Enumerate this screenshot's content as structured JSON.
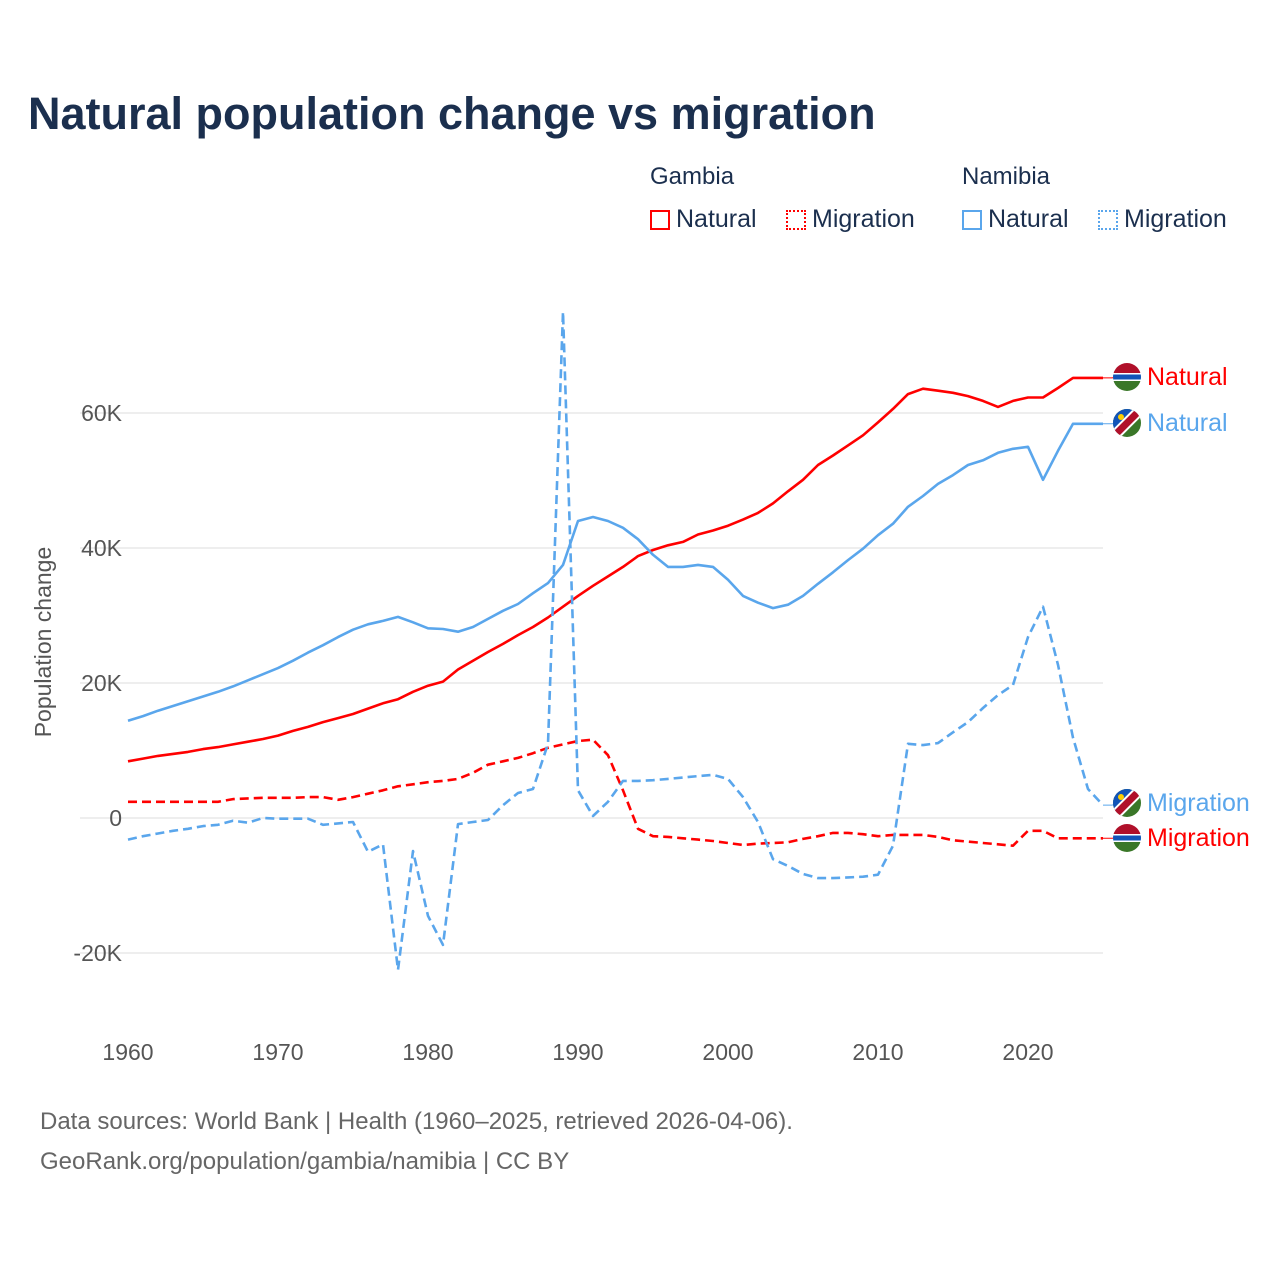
{
  "chart_data": {
    "type": "line",
    "title": "Natural population change vs migration",
    "xlabel": "",
    "ylabel": "Population change",
    "xlim": [
      1960,
      2025
    ],
    "ylim": [
      -30000,
      75000
    ],
    "grid": true,
    "legend_placement": "top-right",
    "x_ticks": [
      "1960",
      "1970",
      "1980",
      "1990",
      "2000",
      "2010",
      "2020"
    ],
    "y_ticks": [
      {
        "v": -20000,
        "label": "-20K"
      },
      {
        "v": 0,
        "label": "0"
      },
      {
        "v": 20000,
        "label": "20K"
      },
      {
        "v": 40000,
        "label": "40K"
      },
      {
        "v": 60000,
        "label": "60K"
      }
    ],
    "legend_groups": [
      {
        "name": "Gambia",
        "items": [
          "Natural",
          "Migration"
        ]
      },
      {
        "name": "Namibia",
        "items": [
          "Natural",
          "Migration"
        ]
      }
    ],
    "x_start": 1960,
    "series": [
      {
        "name": "Gambia Natural",
        "country": "Gambia",
        "end_label": "Natural",
        "color": "#ff0000",
        "dash": false,
        "flag": "gambia",
        "values": [
          8.4,
          8.8,
          9.2,
          9.5,
          9.8,
          10.2,
          10.5,
          10.9,
          11.3,
          11.7,
          12.2,
          12.9,
          13.5,
          14.2,
          14.8,
          15.4,
          16.2,
          17.0,
          17.6,
          18.7,
          19.6,
          20.2,
          22.0,
          23.3,
          24.6,
          25.8,
          27.1,
          28.3,
          29.7,
          31.3,
          32.9,
          34.4,
          35.8,
          37.2,
          38.8,
          39.7,
          40.4,
          40.9,
          42.0,
          42.6,
          43.3,
          44.2,
          45.2,
          46.6,
          48.4,
          50.1,
          52.3,
          53.7,
          55.2,
          56.7,
          58.6,
          60.6,
          62.8,
          63.6,
          63.3,
          63.0,
          62.5,
          61.8,
          60.9,
          61.8,
          62.3,
          62.3,
          63.7,
          65.2,
          65.2,
          65.2
        ]
      },
      {
        "name": "Gambia Migration",
        "country": "Gambia",
        "end_label": "Migration",
        "color": "#ff0000",
        "dash": true,
        "flag": "gambia",
        "values": [
          2.4,
          2.4,
          2.4,
          2.4,
          2.4,
          2.4,
          2.4,
          2.8,
          2.9,
          3.0,
          3.0,
          3.0,
          3.1,
          3.1,
          2.7,
          3.1,
          3.6,
          4.1,
          4.7,
          5.0,
          5.3,
          5.5,
          5.8,
          6.7,
          7.9,
          8.4,
          8.9,
          9.6,
          10.4,
          10.9,
          11.4,
          11.6,
          9.3,
          4.1,
          -1.6,
          -2.7,
          -2.8,
          -3.0,
          -3.2,
          -3.4,
          -3.7,
          -4.0,
          -3.8,
          -3.7,
          -3.6,
          -3.1,
          -2.7,
          -2.2,
          -2.2,
          -2.4,
          -2.7,
          -2.5,
          -2.5,
          -2.5,
          -2.8,
          -3.3,
          -3.5,
          -3.7,
          -3.9,
          -4.1,
          -1.9,
          -1.9,
          -3.0,
          -3.0,
          -3.0,
          -3.0
        ]
      },
      {
        "name": "Namibia Natural",
        "country": "Namibia",
        "end_label": "Natural",
        "color": "#5aa6ec",
        "dash": false,
        "flag": "namibia",
        "values": [
          14.4,
          15.1,
          15.9,
          16.6,
          17.3,
          18.0,
          18.7,
          19.5,
          20.4,
          21.3,
          22.2,
          23.3,
          24.5,
          25.6,
          26.8,
          27.9,
          28.7,
          29.2,
          29.8,
          29.0,
          28.1,
          28.0,
          27.6,
          28.3,
          29.5,
          30.7,
          31.7,
          33.3,
          34.8,
          37.5,
          44.0,
          44.6,
          44.0,
          43.0,
          41.3,
          39.0,
          37.2,
          37.2,
          37.5,
          37.2,
          35.3,
          32.9,
          31.9,
          31.1,
          31.6,
          32.9,
          34.7,
          36.4,
          38.2,
          39.9,
          41.9,
          43.6,
          46.1,
          47.7,
          49.5,
          50.8,
          52.3,
          53.0,
          54.1,
          54.7,
          55.0,
          50.1,
          54.4,
          58.4,
          58.4,
          58.4
        ]
      },
      {
        "name": "Namibia Migration",
        "country": "Namibia",
        "end_label": "Migration",
        "color": "#5aa6ec",
        "dash": true,
        "flag": "namibia",
        "values": [
          -3.2,
          -2.7,
          -2.3,
          -1.9,
          -1.6,
          -1.2,
          -1.0,
          -0.4,
          -0.7,
          0.0,
          -0.1,
          -0.1,
          -0.1,
          -1.0,
          -0.8,
          -0.6,
          -5.0,
          -3.9,
          -22.5,
          -4.9,
          -14.5,
          -18.8,
          -0.9,
          -0.6,
          -0.3,
          1.9,
          3.7,
          4.3,
          11.0,
          75.0,
          4.1,
          0.3,
          2.4,
          5.5,
          5.5,
          5.6,
          5.8,
          6.0,
          6.2,
          6.4,
          5.8,
          3.1,
          -0.6,
          -6.1,
          -7.1,
          -8.3,
          -8.9,
          -8.9,
          -8.8,
          -8.7,
          -8.4,
          -4.1,
          11.0,
          10.8,
          11.1,
          12.7,
          14.2,
          16.3,
          18.2,
          19.7,
          26.8,
          31.3,
          22.7,
          11.9,
          4.3,
          1.9
        ]
      }
    ],
    "value_unit": "thousands"
  },
  "footer": {
    "line1": "Data sources: World Bank | Health (1960–2025, retrieved 2026-04-06).",
    "line2": "GeoRank.org/population/gambia/namibia | CC BY"
  }
}
